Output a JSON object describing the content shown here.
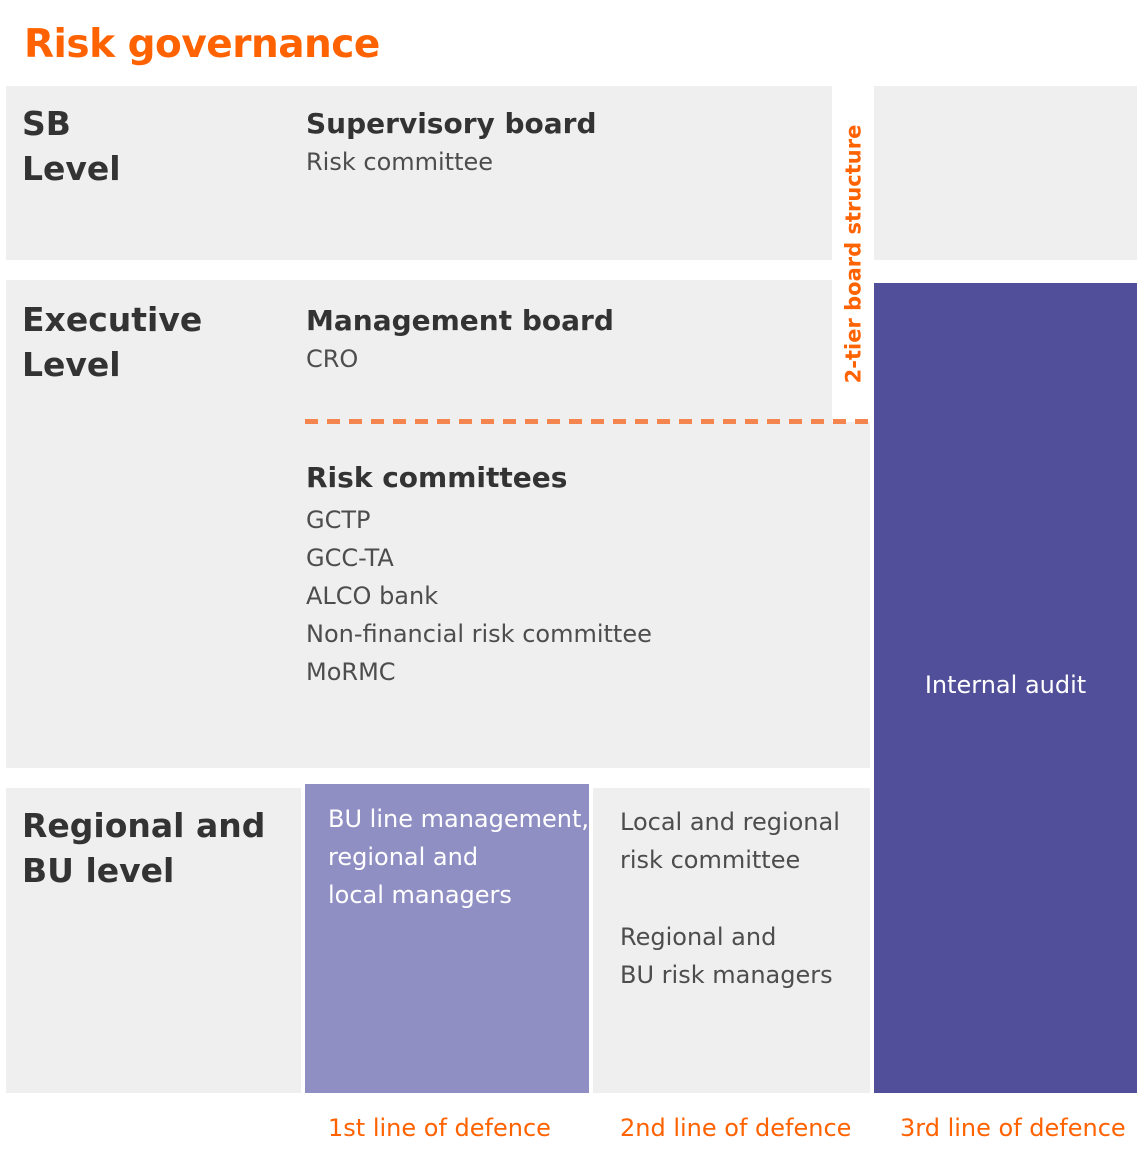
{
  "title": "Risk governance",
  "colors": {
    "orange": "#FF6200",
    "dash_orange": "#F5854F",
    "purple_dark": "#514F99",
    "purple_light": "#908FC4",
    "band_gray": "#EFEFEF",
    "heading_text": "#333333",
    "body_text": "#4D4D4D",
    "white_text": "#FFFFFF"
  },
  "levels": [
    {
      "lines": [
        "SB",
        "Level"
      ]
    },
    {
      "lines": [
        "Executive",
        "Level"
      ]
    },
    {
      "lines": [
        "Regional and",
        "BU level"
      ]
    }
  ],
  "supervisory": {
    "heading": "Supervisory board",
    "subline": "Risk committee"
  },
  "management": {
    "heading": "Management board",
    "subline": "CRO"
  },
  "committees": {
    "heading": "Risk committees",
    "items": [
      "GCTP",
      "GCC-TA",
      "ALCO bank",
      "Non-financial risk committee",
      "MoRMC"
    ]
  },
  "first_line_box": {
    "lines": [
      "BU line management,",
      "regional and",
      "local managers"
    ]
  },
  "second_line": {
    "group1": [
      "Local and regional",
      "risk committee"
    ],
    "group2": [
      "Regional and",
      "BU risk managers"
    ]
  },
  "internal_audit": {
    "label": "Internal audit"
  },
  "tier_label": "2-tier board structure",
  "defence_labels": [
    "1st line of defence",
    "2nd line of defence",
    "3rd line of defence"
  ]
}
